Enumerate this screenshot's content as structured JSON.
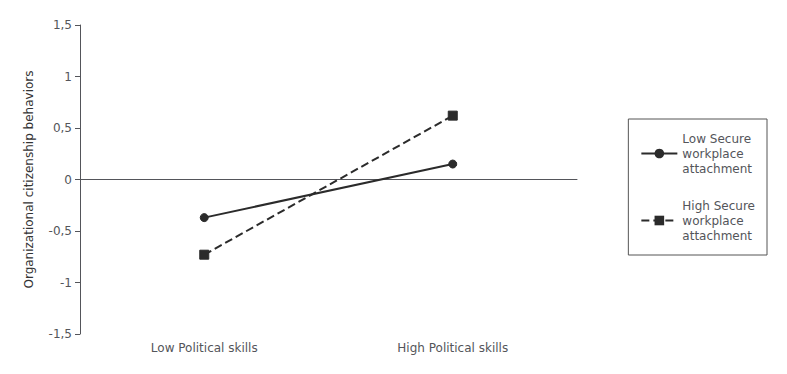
{
  "chart_data": {
    "type": "line",
    "categories": [
      "Low Political skills",
      "High Political skills"
    ],
    "series": [
      {
        "name": "Low Secure\nworkplace\nattachment",
        "color": "#2b2b2b",
        "values": [
          -0.37,
          0.15
        ],
        "marker": "circle",
        "line_style": "solid"
      },
      {
        "name": "High Secure\nworkplace\nattachment",
        "color": "#2b2b2b",
        "values": [
          -0.73,
          0.62
        ],
        "marker": "square",
        "line_style": "dashed"
      }
    ],
    "ylabel": "Organizational citizenship behaviors",
    "ylim": [
      -1.5,
      1.5
    ],
    "yticks": [
      {
        "value": -1.5,
        "label": "-1,5"
      },
      -1,
      {
        "value": -0.5,
        "label": "-0,5"
      },
      0,
      {
        "value": 0.5,
        "label": "0,5"
      },
      1,
      {
        "value": 1.5,
        "label": "1,5"
      }
    ],
    "grid": false,
    "legend": "right"
  }
}
